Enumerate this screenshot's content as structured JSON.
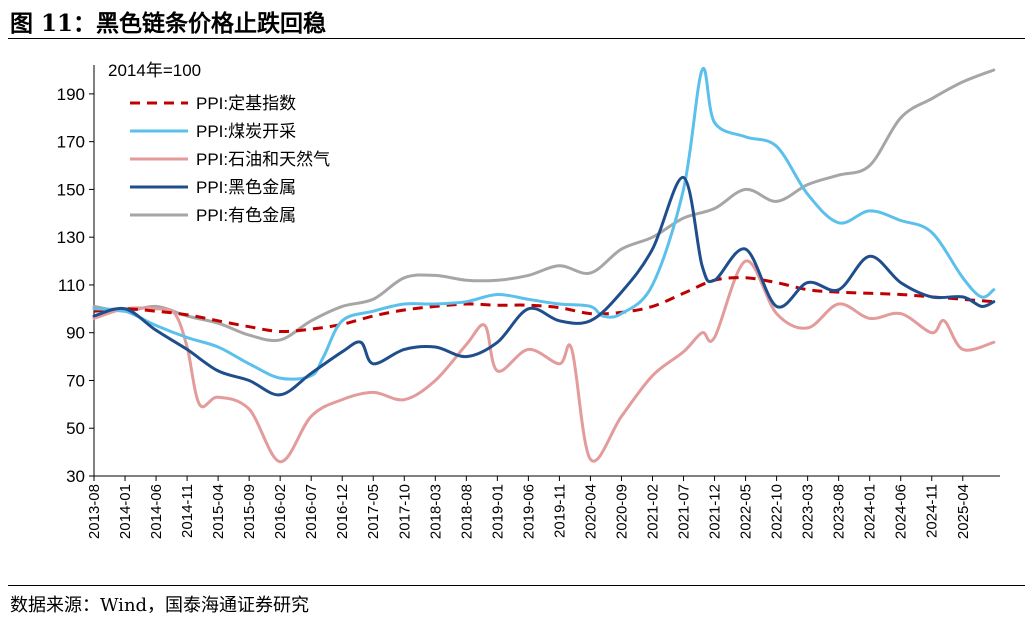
{
  "figure_title": "图 11：黑色链条价格止跌回稳",
  "source_note": "数据来源：Wind，国泰海通证券研究",
  "colors": {
    "ppi_base": "#c00000",
    "coal": "#5bc0eb",
    "oil_gas": "#e39b9b",
    "ferrous": "#1f4e8c",
    "nonferrous": "#a6a6a6"
  },
  "chart_data": {
    "type": "line",
    "unit_note": "2014年=100",
    "ylim": [
      30,
      200
    ],
    "yticks": [
      190,
      170,
      150,
      130,
      110,
      90,
      70,
      50,
      30
    ],
    "xlim": [
      "2013-08",
      "2025-10"
    ],
    "xtick_labels": [
      "2013-08",
      "2014-01",
      "2014-06",
      "2014-11",
      "2015-04",
      "2015-09",
      "2016-02",
      "2016-07",
      "2016-12",
      "2017-05",
      "2017-10",
      "2018-03",
      "2018-08",
      "2019-01",
      "2019-06",
      "2019-11",
      "2020-04",
      "2020-09",
      "2021-02",
      "2021-07",
      "2021-12",
      "2022-05",
      "2022-10",
      "2023-03",
      "2023-08",
      "2024-01",
      "2024-06",
      "2024-11",
      "2025-04"
    ],
    "legend_position": "top-left",
    "series": [
      {
        "name": "PPI:定基指数",
        "color": "#c00000",
        "dashed": true,
        "points": [
          [
            "2013-08",
            99
          ],
          [
            "2014-01",
            100
          ],
          [
            "2014-06",
            99
          ],
          [
            "2014-11",
            97.5
          ],
          [
            "2015-04",
            95
          ],
          [
            "2015-09",
            92.5
          ],
          [
            "2016-02",
            90.5
          ],
          [
            "2016-07",
            91.5
          ],
          [
            "2016-12",
            93.5
          ],
          [
            "2017-05",
            97
          ],
          [
            "2017-10",
            99.5
          ],
          [
            "2018-03",
            101
          ],
          [
            "2018-08",
            102
          ],
          [
            "2019-01",
            101.5
          ],
          [
            "2019-06",
            101.5
          ],
          [
            "2019-11",
            100.5
          ],
          [
            "2020-04",
            98
          ],
          [
            "2020-09",
            98.5
          ],
          [
            "2021-02",
            101
          ],
          [
            "2021-07",
            106.5
          ],
          [
            "2021-12",
            112
          ],
          [
            "2022-05",
            113
          ],
          [
            "2022-10",
            111
          ],
          [
            "2023-03",
            108
          ],
          [
            "2023-08",
            107
          ],
          [
            "2024-01",
            106.5
          ],
          [
            "2024-06",
            106
          ],
          [
            "2024-11",
            105
          ],
          [
            "2025-04",
            104
          ],
          [
            "2025-09",
            103
          ]
        ]
      },
      {
        "name": "PPI:煤炭开采",
        "color": "#5bc0eb",
        "dashed": false,
        "points": [
          [
            "2013-08",
            100
          ],
          [
            "2014-01",
            99
          ],
          [
            "2014-06",
            93
          ],
          [
            "2014-11",
            88
          ],
          [
            "2015-04",
            84
          ],
          [
            "2015-09",
            77
          ],
          [
            "2016-02",
            71
          ],
          [
            "2016-07",
            72
          ],
          [
            "2016-09",
            80
          ],
          [
            "2016-12",
            95
          ],
          [
            "2017-05",
            99
          ],
          [
            "2017-10",
            102
          ],
          [
            "2018-03",
            102
          ],
          [
            "2018-08",
            103
          ],
          [
            "2019-01",
            106
          ],
          [
            "2019-06",
            104
          ],
          [
            "2019-11",
            102
          ],
          [
            "2020-04",
            101
          ],
          [
            "2020-06",
            97
          ],
          [
            "2020-09",
            98
          ],
          [
            "2021-02",
            110
          ],
          [
            "2021-07",
            150
          ],
          [
            "2021-10",
            200
          ],
          [
            "2021-12",
            178
          ],
          [
            "2022-05",
            172
          ],
          [
            "2022-10",
            168
          ],
          [
            "2023-03",
            148
          ],
          [
            "2023-08",
            136
          ],
          [
            "2024-01",
            141
          ],
          [
            "2024-06",
            137
          ],
          [
            "2024-11",
            132
          ],
          [
            "2025-04",
            113
          ],
          [
            "2025-07",
            105
          ],
          [
            "2025-09",
            108
          ]
        ]
      },
      {
        "name": "PPI:石油和天然气",
        "color": "#e39b9b",
        "dashed": false,
        "points": [
          [
            "2013-08",
            96
          ],
          [
            "2014-01",
            100
          ],
          [
            "2014-06",
            100
          ],
          [
            "2014-09",
            98
          ],
          [
            "2014-11",
            84
          ],
          [
            "2015-01",
            60
          ],
          [
            "2015-04",
            63
          ],
          [
            "2015-09",
            58
          ],
          [
            "2016-02",
            36
          ],
          [
            "2016-07",
            55
          ],
          [
            "2016-12",
            62
          ],
          [
            "2017-05",
            65
          ],
          [
            "2017-10",
            62
          ],
          [
            "2018-03",
            70
          ],
          [
            "2018-08",
            85
          ],
          [
            "2018-11",
            93
          ],
          [
            "2019-01",
            74
          ],
          [
            "2019-06",
            83
          ],
          [
            "2019-11",
            77
          ],
          [
            "2020-01",
            83
          ],
          [
            "2020-04",
            37
          ],
          [
            "2020-09",
            55
          ],
          [
            "2021-02",
            72
          ],
          [
            "2021-07",
            82
          ],
          [
            "2021-10",
            90
          ],
          [
            "2021-12",
            88
          ],
          [
            "2022-05",
            120
          ],
          [
            "2022-10",
            98
          ],
          [
            "2023-03",
            92
          ],
          [
            "2023-08",
            102
          ],
          [
            "2024-01",
            96
          ],
          [
            "2024-06",
            98
          ],
          [
            "2024-11",
            90
          ],
          [
            "2025-01",
            95
          ],
          [
            "2025-04",
            83
          ],
          [
            "2025-09",
            86
          ]
        ]
      },
      {
        "name": "PPI:黑色金属",
        "color": "#1f4e8c",
        "dashed": false,
        "points": [
          [
            "2013-08",
            97
          ],
          [
            "2014-01",
            100
          ],
          [
            "2014-06",
            91
          ],
          [
            "2014-11",
            83
          ],
          [
            "2015-04",
            74
          ],
          [
            "2015-09",
            70
          ],
          [
            "2016-02",
            64
          ],
          [
            "2016-07",
            73
          ],
          [
            "2016-12",
            82
          ],
          [
            "2017-03",
            86
          ],
          [
            "2017-05",
            77
          ],
          [
            "2017-10",
            83
          ],
          [
            "2018-03",
            84
          ],
          [
            "2018-08",
            80
          ],
          [
            "2019-01",
            86
          ],
          [
            "2019-06",
            100
          ],
          [
            "2019-11",
            95
          ],
          [
            "2020-04",
            95
          ],
          [
            "2020-09",
            107
          ],
          [
            "2021-02",
            125
          ],
          [
            "2021-07",
            155
          ],
          [
            "2021-10",
            118
          ],
          [
            "2021-12",
            112
          ],
          [
            "2022-05",
            125
          ],
          [
            "2022-10",
            101
          ],
          [
            "2023-03",
            111
          ],
          [
            "2023-08",
            108
          ],
          [
            "2024-01",
            122
          ],
          [
            "2024-06",
            111
          ],
          [
            "2024-11",
            105
          ],
          [
            "2025-04",
            105
          ],
          [
            "2025-07",
            101
          ],
          [
            "2025-09",
            103
          ]
        ]
      },
      {
        "name": "PPI:有色金属",
        "color": "#a6a6a6",
        "dashed": false,
        "points": [
          [
            "2013-08",
            101
          ],
          [
            "2014-01",
            99
          ],
          [
            "2014-06",
            101
          ],
          [
            "2014-11",
            97
          ],
          [
            "2015-04",
            94
          ],
          [
            "2015-09",
            89
          ],
          [
            "2016-02",
            87
          ],
          [
            "2016-07",
            95
          ],
          [
            "2016-12",
            101
          ],
          [
            "2017-05",
            104
          ],
          [
            "2017-10",
            113
          ],
          [
            "2018-03",
            114
          ],
          [
            "2018-08",
            112
          ],
          [
            "2019-01",
            112
          ],
          [
            "2019-06",
            114
          ],
          [
            "2019-11",
            118
          ],
          [
            "2020-04",
            115
          ],
          [
            "2020-09",
            125
          ],
          [
            "2021-02",
            130
          ],
          [
            "2021-07",
            138
          ],
          [
            "2021-12",
            142
          ],
          [
            "2022-05",
            150
          ],
          [
            "2022-10",
            145
          ],
          [
            "2023-03",
            152
          ],
          [
            "2023-08",
            156
          ],
          [
            "2024-01",
            160
          ],
          [
            "2024-06",
            180
          ],
          [
            "2024-11",
            188
          ],
          [
            "2025-04",
            195
          ],
          [
            "2025-09",
            200
          ]
        ]
      }
    ]
  }
}
